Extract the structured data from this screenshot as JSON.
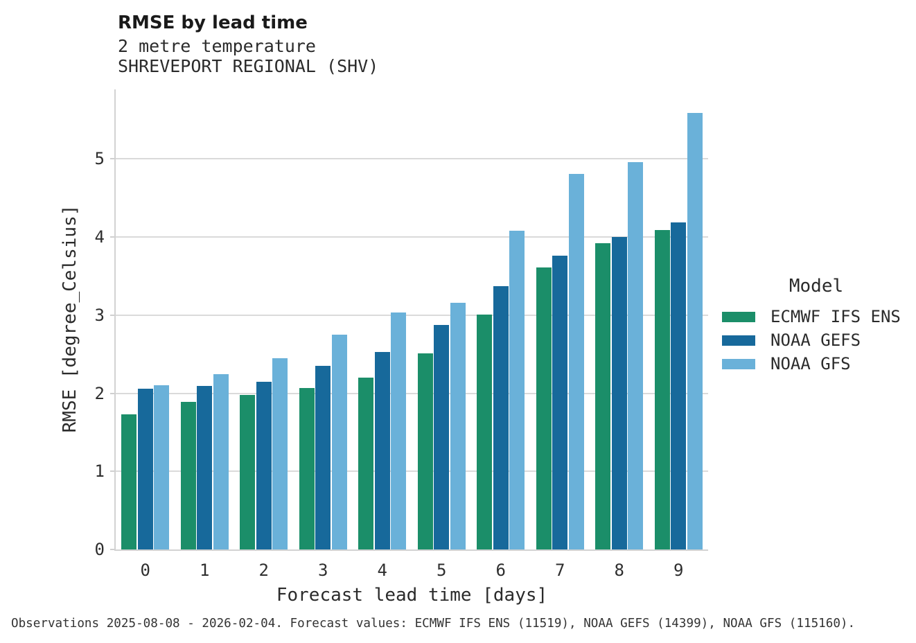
{
  "header": {
    "title": "RMSE by lead time",
    "subtitle_line1": "2 metre temperature",
    "subtitle_line2": "SHREVEPORT REGIONAL (SHV)"
  },
  "legend": {
    "title": "Model"
  },
  "footer": {
    "text": "Observations 2025-08-08 - 2026-02-04. Forecast values: ECMWF IFS ENS (11519), NOAA GEFS (14399), NOAA GFS (115160)."
  },
  "chart_data": {
    "type": "bar",
    "title": "RMSE by lead time",
    "subtitle": [
      "2 metre temperature",
      "SHREVEPORT REGIONAL (SHV)"
    ],
    "categories": [
      "0",
      "1",
      "2",
      "3",
      "4",
      "5",
      "6",
      "7",
      "8",
      "9"
    ],
    "series": [
      {
        "name": "ECMWF IFS ENS",
        "color": "#1b8e69",
        "values": [
          1.73,
          1.89,
          1.98,
          2.07,
          2.2,
          2.51,
          3.01,
          3.61,
          3.92,
          4.09
        ]
      },
      {
        "name": "NOAA GEFS",
        "color": "#17699b",
        "values": [
          2.06,
          2.09,
          2.15,
          2.35,
          2.53,
          2.87,
          3.37,
          3.76,
          4.0,
          4.19
        ]
      },
      {
        "name": "NOAA GFS",
        "color": "#6ab1d9",
        "values": [
          2.1,
          2.24,
          2.45,
          2.75,
          3.03,
          3.16,
          4.08,
          4.81,
          4.96,
          5.59
        ]
      }
    ],
    "xlabel": "Forecast lead time [days]",
    "ylabel": "RMSE [degree_Celsius]",
    "ylim": [
      0,
      5.89
    ],
    "yticks": [
      0,
      1,
      2,
      3,
      4,
      5
    ],
    "grid": "horizontal",
    "legend_title": "Model",
    "legend_position": "right"
  }
}
